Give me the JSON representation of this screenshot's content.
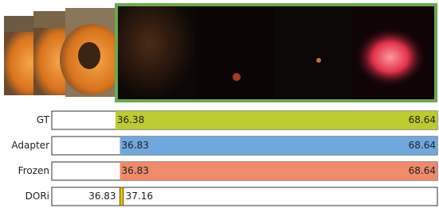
{
  "chart_data": {
    "type": "timeline",
    "xlim": [
      30,
      68.64
    ],
    "series": [
      {
        "name": "GT",
        "start": 36.38,
        "end": 68.64,
        "color": "#bccb2f"
      },
      {
        "name": "Adapter",
        "start": 36.83,
        "end": 68.64,
        "color": "#6fa8dc"
      },
      {
        "name": "Frozen",
        "start": 36.83,
        "end": 68.64,
        "color": "#ef8a6a"
      },
      {
        "name": "DORi",
        "start": 36.83,
        "end": 37.16,
        "color": "#e8c400"
      }
    ]
  }
}
